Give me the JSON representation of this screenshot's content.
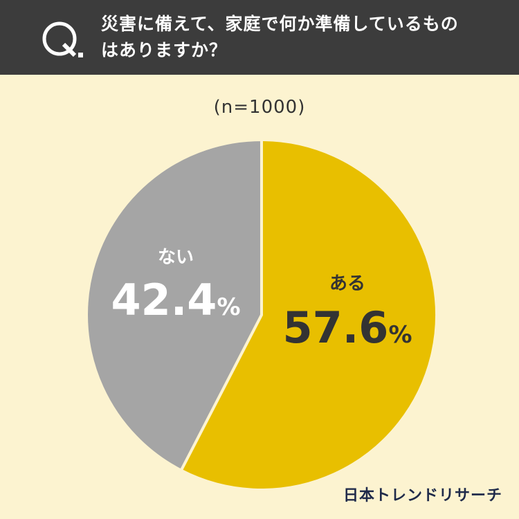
{
  "question": {
    "mark": "Q.",
    "line1": "災害に備えて、家庭で何か準備しているもの",
    "line2": "はありますか？"
  },
  "sample": "(n=1000)",
  "logo": "日本トレンドリサーチ",
  "colors": {
    "header_bg": "#3c3c3c",
    "page_bg": "#fcf3d0",
    "aru": "#e8bf00",
    "nai": "#a5a5a5"
  },
  "chart_data": {
    "type": "pie",
    "title": "",
    "slices": [
      {
        "label": "ある",
        "value": 57.6,
        "display": "57.6",
        "unit": "%",
        "color": "#e8bf00",
        "text_color": "#333333"
      },
      {
        "label": "ない",
        "value": 42.4,
        "display": "42.4",
        "unit": "%",
        "color": "#a5a5a5",
        "text_color": "#ffffff"
      }
    ]
  }
}
